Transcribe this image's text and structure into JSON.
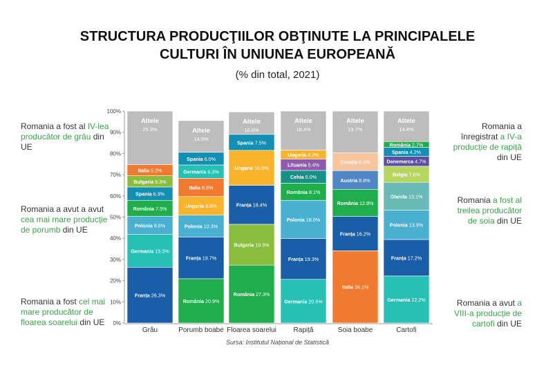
{
  "title_lines": [
    "STRUCTURA PRODUCŢIILOR OBŢINUTE LA PRINCIPALELE",
    "CULTURI ÎN UNIUNEA EUROPEANĂ"
  ],
  "subtitle": "(% din total, 2021)",
  "source": "Sursa: Institutul Național de Statistică",
  "notes": {
    "wheat": {
      "a": "Romania a fost al ",
      "b": "IV-lea producător de grâu",
      "c": " din UE"
    },
    "corn": {
      "a": "Romania a avut a avut ",
      "b": "cea mai mare producție de porumb",
      "c": " din UE"
    },
    "sunflower": {
      "a": "Romania a fost ",
      "b": "cel mai mare producător de floarea soarelui",
      "c": " din UE"
    },
    "rapeseed": {
      "a": "Romania a înregistrat ",
      "b": "a IV-a producție de rapiță",
      "c": " din UE"
    },
    "soy": {
      "a": "Romania ",
      "b": "a fost al treilea producător de soia",
      "c": " din UE"
    },
    "potato": {
      "a": "Romania a avut ",
      "b": "a VIII-a producție de cartofi",
      "c": " din UE"
    }
  },
  "colors": {
    "Franța": "#1a5ea8",
    "Germania": "#26c0b4",
    "Polonia": "#4ab0d0",
    "România": "#1fae4b",
    "Spania": "#138fb4",
    "Bulgaria": "#8bbd3c",
    "Italia": "#ef7a30",
    "Altele": "#bdbdbd",
    "Ungaria": "#f7b42c",
    "Cehia": "#179186",
    "Lituania": "#8f5bb0",
    "Austria": "#4f86c6",
    "Croația": "#f7c49c",
    "Olanda": "#69b9b6",
    "Belgia": "#b6d660",
    "Danemarca": "#5b4fa3"
  },
  "chart_data": {
    "type": "bar",
    "stacked": true,
    "ylim": [
      0,
      100
    ],
    "yticks": [
      "0%",
      "10%",
      "20%",
      "30%",
      "40%",
      "50%",
      "60%",
      "70%",
      "80%",
      "90%",
      "100%"
    ],
    "categories": [
      "Grâu",
      "Porumb boabe",
      "Floarea soarelui",
      "Rapiță",
      "Soia boabe",
      "Cartofi"
    ],
    "bars": [
      {
        "category": "Grâu",
        "segments": [
          {
            "name": "Franța",
            "value": 26.3,
            "label": "26.3%"
          },
          {
            "name": "Germania",
            "value": 15.5,
            "label": "15.5%"
          },
          {
            "name": "Polonia",
            "value": 8.6,
            "label": "8.6%"
          },
          {
            "name": "România",
            "value": 7.5,
            "label": "7.5%"
          },
          {
            "name": "Spania",
            "value": 6.3,
            "label": "6.3%"
          },
          {
            "name": "Bulgaria",
            "value": 5.3,
            "label": "5.3%"
          },
          {
            "name": "Italia",
            "value": 5.2,
            "label": "5.2%"
          },
          {
            "name": "Altele",
            "value": 25.3,
            "label": "25.3%"
          }
        ]
      },
      {
        "category": "Porumb boabe",
        "segments": [
          {
            "name": "România",
            "value": 20.9,
            "label": "20.9%"
          },
          {
            "name": "Franța",
            "value": 19.7,
            "label": "19.7%"
          },
          {
            "name": "Polonia",
            "value": 10.3,
            "label": "10.3%"
          },
          {
            "name": "Ungaria",
            "value": 8.8,
            "label": "8.8%"
          },
          {
            "name": "Italia",
            "value": 8.6,
            "label": "8.6%"
          },
          {
            "name": "Germania",
            "value": 6.3,
            "label": "6.3%"
          },
          {
            "name": "Spania",
            "value": 6.0,
            "label": "6.0%"
          },
          {
            "name": "Altele",
            "value": 14.9,
            "label": "14.9%"
          }
        ]
      },
      {
        "category": "Floarea soarelui",
        "segments": [
          {
            "name": "România",
            "value": 27.3,
            "label": "27.3%"
          },
          {
            "name": "Bulgaria",
            "value": 19.3,
            "label": "19.3%"
          },
          {
            "name": "Franța",
            "value": 18.4,
            "label": "18.4%"
          },
          {
            "name": "Ungaria",
            "value": 16.5,
            "label": "16.5%"
          },
          {
            "name": "Spania",
            "value": 7.5,
            "label": "7.5%"
          },
          {
            "name": "Altele",
            "value": 10.6,
            "label": "10.6%"
          }
        ]
      },
      {
        "category": "Rapiță",
        "segments": [
          {
            "name": "Germania",
            "value": 20.6,
            "label": "20.6%"
          },
          {
            "name": "Franța",
            "value": 19.3,
            "label": "19.3%"
          },
          {
            "name": "Polonia",
            "value": 18.0,
            "label": "18.0%"
          },
          {
            "name": "România",
            "value": 8.1,
            "label": "8.1%"
          },
          {
            "name": "Cehia",
            "value": 6.0,
            "label": "6.0%"
          },
          {
            "name": "Lituania",
            "value": 5.4,
            "label": "5.4%"
          },
          {
            "name": "Ungaria",
            "value": 4.2,
            "label": "4.2%"
          },
          {
            "name": "Altele",
            "value": 18.4,
            "label": "18.4%"
          }
        ]
      },
      {
        "category": "Soia boabe",
        "segments": [
          {
            "name": "Italia",
            "value": 34.1,
            "label": "34.1%"
          },
          {
            "name": "Franța",
            "value": 16.2,
            "label": "16.2%"
          },
          {
            "name": "România",
            "value": 12.8,
            "label": "12.8%"
          },
          {
            "name": "Austria",
            "value": 8.8,
            "label": "8.8%"
          },
          {
            "name": "Croația",
            "value": 8.4,
            "label": "8.4%"
          },
          {
            "name": "Altele",
            "value": 19.7,
            "label": "19.7%"
          }
        ]
      },
      {
        "category": "Cartofi",
        "segments": [
          {
            "name": "Germania",
            "value": 22.2,
            "label": "22.2%"
          },
          {
            "name": "Franța",
            "value": 17.2,
            "label": "17.2%"
          },
          {
            "name": "Polonia",
            "value": 13.9,
            "label": "13.9%"
          },
          {
            "name": "Olanda",
            "value": 13.1,
            "label": "13.1%"
          },
          {
            "name": "Belgia",
            "value": 7.6,
            "label": "7.6%"
          },
          {
            "name": "Danemarca",
            "value": 4.7,
            "label": "4.7%"
          },
          {
            "name": "Spania",
            "value": 4.2,
            "label": "4.2%"
          },
          {
            "name": "România",
            "value": 2.7,
            "label": "2.7%"
          },
          {
            "name": "Altele",
            "value": 14.4,
            "label": "14.4%"
          }
        ]
      }
    ]
  }
}
